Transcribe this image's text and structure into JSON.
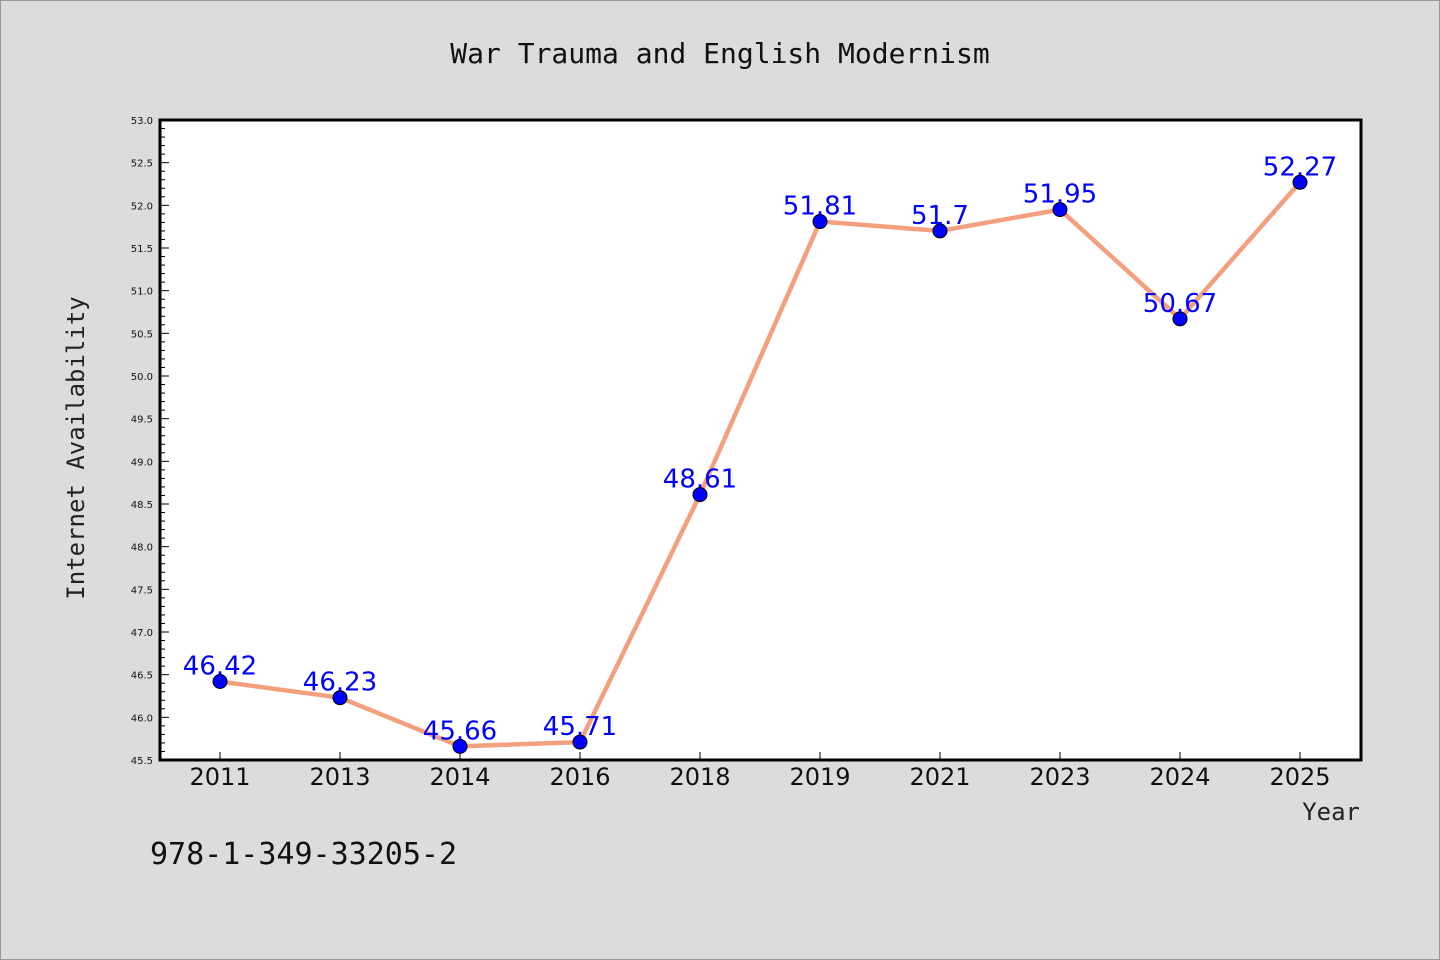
{
  "chart_data": {
    "type": "line",
    "title": "War Trauma and English Modernism",
    "xlabel": "Year",
    "ylabel": "Internet Availability",
    "categories": [
      "2011",
      "2013",
      "2014",
      "2016",
      "2018",
      "2019",
      "2021",
      "2023",
      "2024",
      "2025"
    ],
    "series": [
      {
        "values": [
          46.42,
          46.23,
          45.66,
          45.71,
          48.61,
          51.81,
          51.7,
          51.95,
          50.67,
          52.27
        ],
        "data_labels": [
          "46.42",
          "46.23",
          "45.66",
          "45.71",
          "48.61",
          "51.81",
          "51.7",
          "51.95",
          "50.67",
          "52.27"
        ]
      }
    ],
    "ylim": [
      45.5,
      53.0
    ],
    "yticks": [
      "45.5",
      "46.0",
      "46.5",
      "47.0",
      "47.5",
      "48.0",
      "48.5",
      "49.0",
      "49.5",
      "50.0",
      "50.5",
      "51.0",
      "51.5",
      "52.0",
      "52.5",
      "53.0"
    ],
    "grid": false,
    "legend": "none",
    "colors": {
      "line": "#f4a07f",
      "marker": "#0000ff",
      "label": "#0000ff",
      "background": "#dcdcdc",
      "plot_background": "#ffffff"
    }
  },
  "footnote": "978-1-349-33205-2"
}
